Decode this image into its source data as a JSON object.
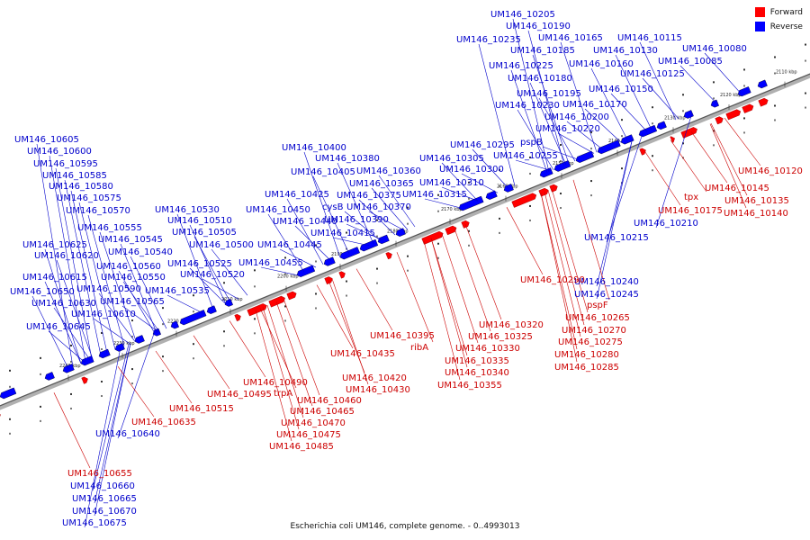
{
  "legend": [
    {
      "label": "Forward",
      "color": "#ff0000"
    },
    {
      "label": "Reverse",
      "color": "#0000ff"
    }
  ],
  "caption": "Escherichia coli UM146, complete genome. - 0..4993013",
  "ticks": [
    "2110 kbp",
    "2120 kbp",
    "2130 kbp",
    "2140 kbp",
    "2150 kbp",
    "2160 kbp",
    "2170 kbp",
    "2180 kbp",
    "2190 kbp",
    "2200 kbp",
    "2210 kbp",
    "2220 kbp",
    "2230 kbp",
    "2240 kbp"
  ],
  "reverse_labels": [
    "UM146_10205",
    "UM146_10190",
    "UM146_10235",
    "UM146_10165",
    "UM146_10115",
    "UM146_10185",
    "UM146_10130",
    "UM146_10080",
    "UM146_10225",
    "UM146_10160",
    "UM146_10085",
    "UM146_10180",
    "UM146_10125",
    "UM146_10195",
    "UM146_10150",
    "UM146_10230",
    "UM146_10170",
    "UM146_10200",
    "UM146_10220",
    "UM146_10605",
    "pspB",
    "UM146_10600",
    "UM146_10295",
    "UM146_10255",
    "UM146_10595",
    "UM146_10400",
    "UM146_10305",
    "UM146_10585",
    "UM146_10380",
    "UM146_10300",
    "UM146_10580",
    "UM146_10405",
    "UM146_10360",
    "UM146_10575",
    "UM146_10365",
    "UM146_10310",
    "UM146_10425",
    "UM146_10375",
    "UM146_10315",
    "UM146_10570",
    "UM146_10530",
    "cysB",
    "UM146_10370",
    "UM146_10450",
    "UM146_10555",
    "UM146_10510",
    "UM146_10390",
    "UM146_10440",
    "UM146_10545",
    "UM146_10505",
    "UM146_10415",
    "UM146_10625",
    "UM146_10540",
    "UM146_10500",
    "UM146_10445",
    "UM146_10620",
    "UM146_10525",
    "UM146_10560",
    "UM146_10455",
    "UM146_10520",
    "UM146_10550",
    "UM146_10615",
    "UM146_10650",
    "UM146_10590",
    "UM146_10535",
    "UM146_10630",
    "UM146_10565",
    "UM146_10610",
    "UM146_10645",
    "UM146_10210",
    "UM146_10215",
    "UM146_10240",
    "UM146_10245",
    "UM146_10640",
    "UM146_10660",
    "UM146_10665",
    "UM146_10670",
    "UM146_10675"
  ],
  "forward_labels": [
    "UM146_10120",
    "UM146_10145",
    "tpx",
    "UM146_10135",
    "UM146_10175",
    "UM146_10140",
    "UM146_10290",
    "pspF",
    "UM146_10265",
    "UM146_10270",
    "UM146_10275",
    "UM146_10280",
    "UM146_10285",
    "UM146_10320",
    "UM146_10325",
    "UM146_10330",
    "UM146_10335",
    "UM146_10340",
    "UM146_10355",
    "UM146_10395",
    "ribA",
    "UM146_10435",
    "UM146_10420",
    "UM146_10430",
    "UM146_10490",
    "UM146_10495",
    "trpA",
    "UM146_10460",
    "UM146_10465",
    "UM146_10470",
    "UM146_10475",
    "UM146_10485",
    "UM146_10515",
    "UM146_10635",
    "UM146_10655"
  ]
}
